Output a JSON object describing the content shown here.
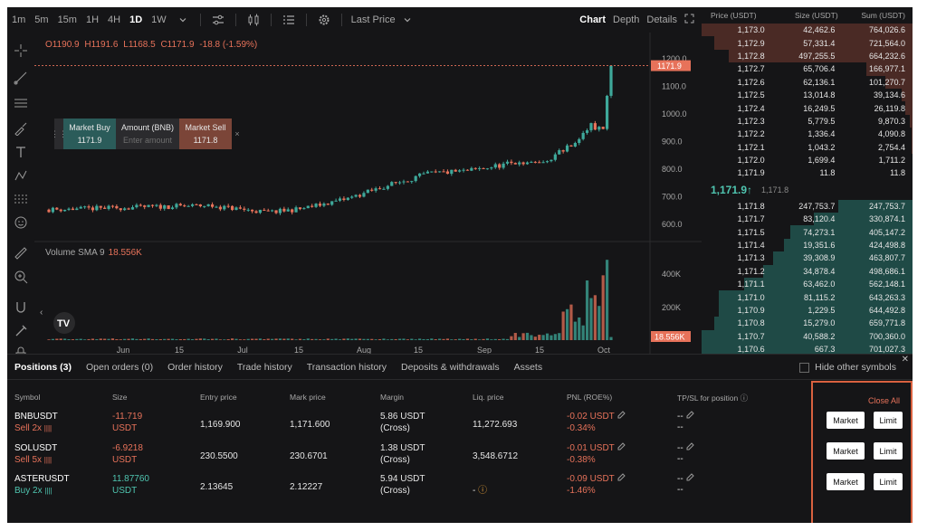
{
  "toolbar": {
    "timeframes": [
      "1m",
      "5m",
      "15m",
      "1H",
      "4H",
      "1D",
      "1W"
    ],
    "active_timeframe": "1D",
    "price_type": "Last Price",
    "views": [
      "Chart",
      "Depth",
      "Details"
    ],
    "active_view": "Chart"
  },
  "chart": {
    "ohlc": {
      "open": "O1190.9",
      "high": "H1191.6",
      "low": "L1168.5",
      "close": "C1171.9",
      "change": "-18.8 (-1.59%)"
    },
    "price_ticks": [
      "1200.0",
      "1100.0",
      "1000.0",
      "900.0",
      "800.0",
      "700.0",
      "600.0"
    ],
    "current_price_tag": "1171.9",
    "volume_label": "Volume SMA 9",
    "volume_value": "18.556K",
    "volume_ticks": [
      "400K",
      "200K"
    ],
    "volume_tag": "18.556K",
    "x_labels": [
      "Jun",
      "15",
      "Jul",
      "15",
      "Aug",
      "15",
      "Sep",
      "15",
      "Oct"
    ],
    "colors": {
      "up": "#3ea89a",
      "down": "#e7725a",
      "background": "#151517"
    }
  },
  "quick_trade": {
    "buy_label": "Market Buy",
    "buy_price": "1171.9",
    "amount_label": "Amount (BNB)",
    "amount_placeholder": "Enter amount",
    "sell_label": "Market Sell",
    "sell_price": "1171.8"
  },
  "orderbook": {
    "headers": [
      "Price (USDT)",
      "Size (USDT)",
      "Sum (USDT)"
    ],
    "asks": [
      {
        "price": "1,173.0",
        "size": "42,462.6",
        "sum": "764,026.6",
        "depth": 1.0
      },
      {
        "price": "1,172.9",
        "size": "57,331.4",
        "sum": "721,564.0",
        "depth": 0.94
      },
      {
        "price": "1,172.8",
        "size": "497,255.5",
        "sum": "664,232.6",
        "depth": 0.87
      },
      {
        "price": "1,172.7",
        "size": "65,706.4",
        "sum": "166,977.1",
        "depth": 0.22
      },
      {
        "price": "1,172.6",
        "size": "62,136.1",
        "sum": "101,270.7",
        "depth": 0.13
      },
      {
        "price": "1,172.5",
        "size": "13,014.8",
        "sum": "39,134.6",
        "depth": 0.05
      },
      {
        "price": "1,172.4",
        "size": "16,249.5",
        "sum": "26,119.8",
        "depth": 0.034
      },
      {
        "price": "1,172.3",
        "size": "5,779.5",
        "sum": "9,870.3",
        "depth": 0.013
      },
      {
        "price": "1,172.2",
        "size": "1,336.4",
        "sum": "4,090.8",
        "depth": 0.005
      },
      {
        "price": "1,172.1",
        "size": "1,043.2",
        "sum": "2,754.4",
        "depth": 0.004
      },
      {
        "price": "1,172.0",
        "size": "1,699.4",
        "sum": "1,711.2",
        "depth": 0.002
      },
      {
        "price": "1,171.9",
        "size": "11.8",
        "sum": "11.8",
        "depth": 0.0
      }
    ],
    "mid_price": "1,171.9↑",
    "mark_price": "1,171.8",
    "bids": [
      {
        "price": "1,171.8",
        "size": "247,753.7",
        "sum": "247,753.7",
        "depth": 0.35
      },
      {
        "price": "1,171.7",
        "size": "83,120.4",
        "sum": "330,874.1",
        "depth": 0.47
      },
      {
        "price": "1,171.5",
        "size": "74,273.1",
        "sum": "405,147.2",
        "depth": 0.58
      },
      {
        "price": "1,171.4",
        "size": "19,351.6",
        "sum": "424,498.8",
        "depth": 0.61
      },
      {
        "price": "1,171.3",
        "size": "39,308.9",
        "sum": "463,807.7",
        "depth": 0.66
      },
      {
        "price": "1,171.2",
        "size": "34,878.4",
        "sum": "498,686.1",
        "depth": 0.71
      },
      {
        "price": "1,171.1",
        "size": "63,462.0",
        "sum": "562,148.1",
        "depth": 0.8
      },
      {
        "price": "1,171.0",
        "size": "81,115.2",
        "sum": "643,263.3",
        "depth": 0.92
      },
      {
        "price": "1,170.9",
        "size": "1,229.5",
        "sum": "644,492.8",
        "depth": 0.92
      },
      {
        "price": "1,170.8",
        "size": "15,279.0",
        "sum": "659,771.8",
        "depth": 0.94
      },
      {
        "price": "1,170.7",
        "size": "40,588.2",
        "sum": "700,360.0",
        "depth": 1.0
      },
      {
        "price": "1,170.6",
        "size": "667.3",
        "sum": "701,027.3",
        "depth": 1.0
      }
    ]
  },
  "positions": {
    "tabs": [
      "Positions (3)",
      "Open orders (0)",
      "Order history",
      "Trade history",
      "Transaction history",
      "Deposits & withdrawals",
      "Assets"
    ],
    "hide_other": "Hide other symbols",
    "close_all": "Close All",
    "columns": [
      "Symbol",
      "Size",
      "Entry price",
      "Mark price",
      "Margin",
      "Liq. price",
      "PNL (ROE%)",
      "TP/SL for position"
    ],
    "market_label": "Market",
    "limit_label": "Limit",
    "rows": [
      {
        "symbol": "BNBUSDT",
        "side": "Sell 2x",
        "side_type": "sell",
        "size": "-11.719",
        "size_unit": "USDT",
        "entry": "1,169.900",
        "mark": "1,171.600",
        "margin": "5.86 USDT",
        "margin_mode": "(Cross)",
        "liq": "11,272.693",
        "pnl": "-0.02 USDT",
        "roe": "-0.34%",
        "tp": "--",
        "sl": "--"
      },
      {
        "symbol": "SOLUSDT",
        "side": "Sell 5x",
        "side_type": "sell",
        "size": "-6.9218",
        "size_unit": "USDT",
        "entry": "230.5500",
        "mark": "230.6701",
        "margin": "1.38 USDT",
        "margin_mode": "(Cross)",
        "liq": "3,548.6712",
        "pnl": "-0.01 USDT",
        "roe": "-0.38%",
        "tp": "--",
        "sl": "--"
      },
      {
        "symbol": "ASTERUSDT",
        "side": "Buy 2x",
        "side_type": "buy",
        "size": "11.87760",
        "size_unit": "USDT",
        "entry": "2.13645",
        "mark": "2.12227",
        "margin": "5.94 USDT",
        "margin_mode": "(Cross)",
        "liq": "-",
        "pnl": "-0.09 USDT",
        "roe": "-1.46%",
        "tp": "--",
        "sl": "--"
      }
    ]
  }
}
